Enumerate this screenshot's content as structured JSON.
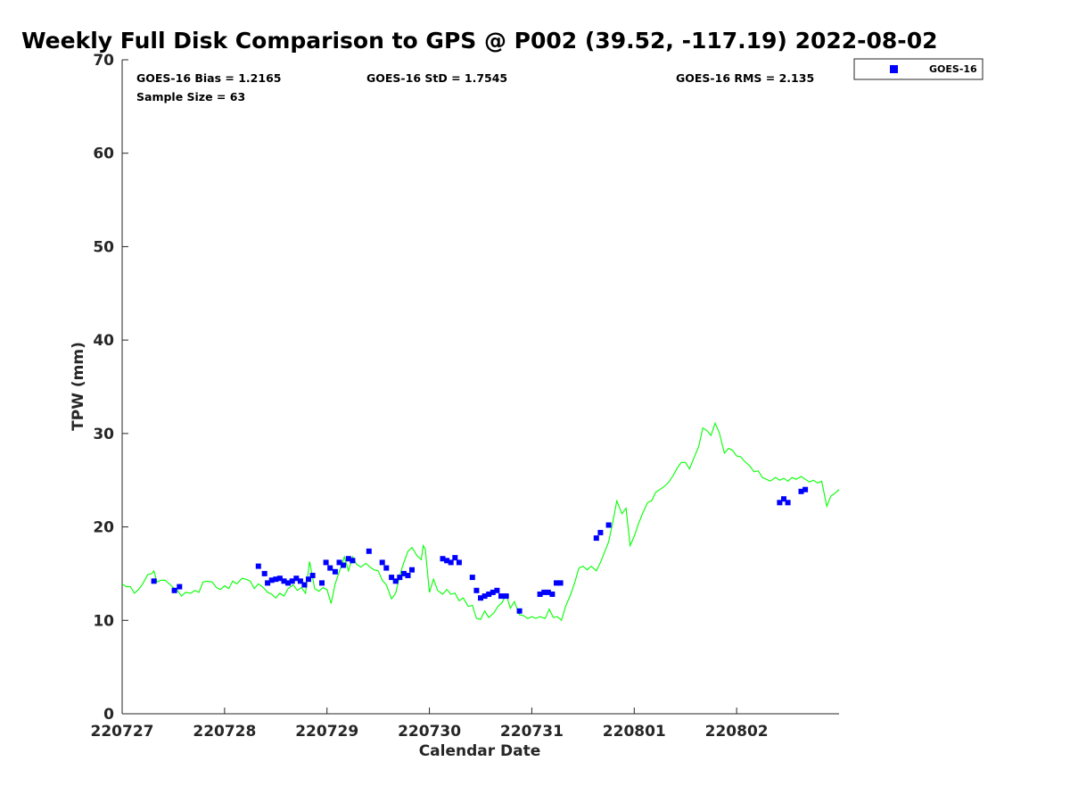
{
  "chart_data": {
    "type": "scatter",
    "title": "Weekly Full Disk Comparison to GPS @ P002 (39.52, -117.19) 2022-08-02",
    "xlabel": "Calendar Date",
    "ylabel": "TPW (mm)",
    "ylim": [
      0,
      70
    ],
    "xlim": [
      0,
      7
    ],
    "yticks": [
      0,
      10,
      20,
      30,
      40,
      50,
      60,
      70
    ],
    "xticks": [
      0,
      1,
      2,
      3,
      4,
      5,
      6
    ],
    "xtick_labels": [
      "220727",
      "220728",
      "220729",
      "220730",
      "220731",
      "220801",
      "220802"
    ],
    "grid": false,
    "legend": {
      "placement": "top-right",
      "entries": [
        "GOES-16"
      ]
    },
    "stats": {
      "bias": "GOES-16 Bias = 1.2165",
      "std": "GOES-16 StD = 1.7545",
      "rms": "GOES-16 RMS = 2.135",
      "sample": "Sample Size = 63"
    },
    "series": [
      {
        "name": "GOES-16",
        "marker": "square",
        "color": "#0000ff",
        "points": [
          [
            0.31,
            14.2
          ],
          [
            0.51,
            13.2
          ],
          [
            0.56,
            13.6
          ],
          [
            1.33,
            15.8
          ],
          [
            1.39,
            15.0
          ],
          [
            1.42,
            14.0
          ],
          [
            1.46,
            14.3
          ],
          [
            1.5,
            14.4
          ],
          [
            1.54,
            14.5
          ],
          [
            1.58,
            14.2
          ],
          [
            1.62,
            14.0
          ],
          [
            1.66,
            14.2
          ],
          [
            1.7,
            14.5
          ],
          [
            1.74,
            14.2
          ],
          [
            1.78,
            13.8
          ],
          [
            1.82,
            14.4
          ],
          [
            1.86,
            14.8
          ],
          [
            1.95,
            14.0
          ],
          [
            1.99,
            16.2
          ],
          [
            2.03,
            15.6
          ],
          [
            2.08,
            15.2
          ],
          [
            2.12,
            16.2
          ],
          [
            2.16,
            15.9
          ],
          [
            2.21,
            16.6
          ],
          [
            2.25,
            16.4
          ],
          [
            2.41,
            17.4
          ],
          [
            2.54,
            16.2
          ],
          [
            2.58,
            15.6
          ],
          [
            2.63,
            14.6
          ],
          [
            2.67,
            14.2
          ],
          [
            2.71,
            14.6
          ],
          [
            2.75,
            15.0
          ],
          [
            2.79,
            14.8
          ],
          [
            2.83,
            15.4
          ],
          [
            3.13,
            16.6
          ],
          [
            3.17,
            16.4
          ],
          [
            3.21,
            16.2
          ],
          [
            3.25,
            16.7
          ],
          [
            3.29,
            16.2
          ],
          [
            3.42,
            14.6
          ],
          [
            3.46,
            13.2
          ],
          [
            3.5,
            12.4
          ],
          [
            3.54,
            12.6
          ],
          [
            3.58,
            12.8
          ],
          [
            3.62,
            13.0
          ],
          [
            3.66,
            13.2
          ],
          [
            3.7,
            12.6
          ],
          [
            3.75,
            12.6
          ],
          [
            3.88,
            11.0
          ],
          [
            4.08,
            12.8
          ],
          [
            4.12,
            13.0
          ],
          [
            4.16,
            13.0
          ],
          [
            4.2,
            12.8
          ],
          [
            4.24,
            14.0
          ],
          [
            4.28,
            14.0
          ],
          [
            4.63,
            18.8
          ],
          [
            4.67,
            19.4
          ],
          [
            4.75,
            20.2
          ],
          [
            6.42,
            22.6
          ],
          [
            6.46,
            23.0
          ],
          [
            6.5,
            22.6
          ],
          [
            6.63,
            23.8
          ],
          [
            6.67,
            24.0
          ]
        ]
      },
      {
        "name": "",
        "color": "#00ff00",
        "line": [
          [
            0.0,
            13.9
          ],
          [
            0.04,
            13.6
          ],
          [
            0.08,
            13.6
          ],
          [
            0.12,
            12.9
          ],
          [
            0.16,
            13.3
          ],
          [
            0.2,
            13.9
          ],
          [
            0.25,
            14.9
          ],
          [
            0.29,
            15.0
          ],
          [
            0.31,
            15.3
          ],
          [
            0.34,
            14.1
          ],
          [
            0.38,
            14.3
          ],
          [
            0.42,
            14.3
          ],
          [
            0.46,
            13.9
          ],
          [
            0.5,
            13.5
          ],
          [
            0.54,
            13.2
          ],
          [
            0.58,
            12.6
          ],
          [
            0.62,
            13.0
          ],
          [
            0.67,
            12.9
          ],
          [
            0.71,
            13.2
          ],
          [
            0.75,
            13.0
          ],
          [
            0.79,
            14.1
          ],
          [
            0.83,
            14.2
          ],
          [
            0.88,
            14.1
          ],
          [
            0.92,
            13.5
          ],
          [
            0.96,
            13.3
          ],
          [
            1.0,
            13.7
          ],
          [
            1.04,
            13.4
          ],
          [
            1.08,
            14.2
          ],
          [
            1.12,
            13.9
          ],
          [
            1.17,
            14.5
          ],
          [
            1.21,
            14.4
          ],
          [
            1.25,
            14.2
          ],
          [
            1.29,
            13.4
          ],
          [
            1.33,
            13.9
          ],
          [
            1.38,
            13.5
          ],
          [
            1.42,
            13.0
          ],
          [
            1.46,
            12.8
          ],
          [
            1.5,
            12.4
          ],
          [
            1.54,
            12.9
          ],
          [
            1.58,
            12.6
          ],
          [
            1.62,
            13.4
          ],
          [
            1.67,
            13.8
          ],
          [
            1.71,
            13.2
          ],
          [
            1.75,
            13.5
          ],
          [
            1.79,
            12.9
          ],
          [
            1.83,
            16.3
          ],
          [
            1.88,
            13.4
          ],
          [
            1.92,
            13.1
          ],
          [
            1.96,
            13.5
          ],
          [
            2.0,
            13.3
          ],
          [
            2.04,
            11.8
          ],
          [
            2.08,
            13.9
          ],
          [
            2.13,
            15.5
          ],
          [
            2.17,
            16.8
          ],
          [
            2.21,
            15.3
          ],
          [
            2.25,
            16.8
          ],
          [
            2.29,
            16.0
          ],
          [
            2.33,
            15.7
          ],
          [
            2.38,
            16.1
          ],
          [
            2.42,
            15.7
          ],
          [
            2.46,
            15.4
          ],
          [
            2.5,
            15.3
          ],
          [
            2.54,
            14.3
          ],
          [
            2.58,
            13.8
          ],
          [
            2.63,
            12.3
          ],
          [
            2.67,
            12.9
          ],
          [
            2.71,
            14.8
          ],
          [
            2.75,
            16.2
          ],
          [
            2.79,
            17.4
          ],
          [
            2.83,
            17.8
          ],
          [
            2.88,
            16.9
          ],
          [
            2.92,
            16.5
          ],
          [
            2.94,
            18.0
          ],
          [
            2.96,
            17.6
          ],
          [
            3.0,
            13.0
          ],
          [
            3.04,
            14.4
          ],
          [
            3.08,
            13.2
          ],
          [
            3.13,
            12.8
          ],
          [
            3.17,
            13.3
          ],
          [
            3.21,
            12.8
          ],
          [
            3.25,
            12.9
          ],
          [
            3.29,
            12.1
          ],
          [
            3.33,
            12.4
          ],
          [
            3.38,
            11.5
          ],
          [
            3.42,
            11.6
          ],
          [
            3.46,
            10.2
          ],
          [
            3.5,
            10.1
          ],
          [
            3.54,
            11.0
          ],
          [
            3.58,
            10.3
          ],
          [
            3.63,
            10.8
          ],
          [
            3.67,
            11.5
          ],
          [
            3.71,
            11.9
          ],
          [
            3.75,
            12.8
          ],
          [
            3.79,
            11.3
          ],
          [
            3.83,
            12.0
          ],
          [
            3.88,
            10.6
          ],
          [
            3.92,
            10.5
          ],
          [
            3.96,
            10.2
          ],
          [
            4.0,
            10.4
          ],
          [
            4.04,
            10.2
          ],
          [
            4.08,
            10.4
          ],
          [
            4.13,
            10.2
          ],
          [
            4.17,
            11.2
          ],
          [
            4.21,
            10.3
          ],
          [
            4.25,
            10.4
          ],
          [
            4.29,
            10.0
          ],
          [
            4.33,
            11.5
          ],
          [
            4.38,
            12.8
          ],
          [
            4.42,
            14.1
          ],
          [
            4.46,
            15.6
          ],
          [
            4.5,
            15.8
          ],
          [
            4.54,
            15.4
          ],
          [
            4.58,
            15.8
          ],
          [
            4.63,
            15.3
          ],
          [
            4.67,
            16.2
          ],
          [
            4.71,
            17.3
          ],
          [
            4.75,
            18.4
          ],
          [
            4.79,
            20.5
          ],
          [
            4.83,
            22.8
          ],
          [
            4.88,
            21.4
          ],
          [
            4.92,
            22.0
          ],
          [
            4.96,
            18.0
          ],
          [
            5.0,
            19.0
          ],
          [
            5.04,
            20.3
          ],
          [
            5.08,
            21.4
          ],
          [
            5.13,
            22.6
          ],
          [
            5.17,
            22.8
          ],
          [
            5.21,
            23.7
          ],
          [
            5.25,
            24.0
          ],
          [
            5.29,
            24.3
          ],
          [
            5.33,
            24.7
          ],
          [
            5.38,
            25.5
          ],
          [
            5.42,
            26.3
          ],
          [
            5.46,
            26.9
          ],
          [
            5.5,
            26.9
          ],
          [
            5.54,
            26.2
          ],
          [
            5.58,
            27.3
          ],
          [
            5.63,
            28.6
          ],
          [
            5.67,
            30.6
          ],
          [
            5.71,
            30.3
          ],
          [
            5.75,
            29.8
          ],
          [
            5.79,
            31.1
          ],
          [
            5.83,
            30.1
          ],
          [
            5.88,
            27.9
          ],
          [
            5.92,
            28.4
          ],
          [
            5.96,
            28.2
          ],
          [
            6.0,
            27.6
          ],
          [
            6.04,
            27.5
          ],
          [
            6.08,
            27.0
          ],
          [
            6.13,
            26.5
          ],
          [
            6.17,
            25.9
          ],
          [
            6.21,
            26.0
          ],
          [
            6.25,
            25.3
          ],
          [
            6.29,
            25.1
          ],
          [
            6.33,
            24.9
          ],
          [
            6.38,
            25.3
          ],
          [
            6.42,
            25.0
          ],
          [
            6.46,
            25.2
          ],
          [
            6.5,
            24.9
          ],
          [
            6.54,
            25.3
          ],
          [
            6.58,
            25.1
          ],
          [
            6.63,
            25.4
          ],
          [
            6.67,
            25.1
          ],
          [
            6.71,
            24.8
          ],
          [
            6.75,
            25.0
          ],
          [
            6.79,
            24.7
          ],
          [
            6.83,
            24.9
          ],
          [
            6.88,
            22.2
          ],
          [
            6.92,
            23.3
          ],
          [
            6.96,
            23.6
          ],
          [
            7.0,
            24.0
          ]
        ]
      }
    ]
  }
}
